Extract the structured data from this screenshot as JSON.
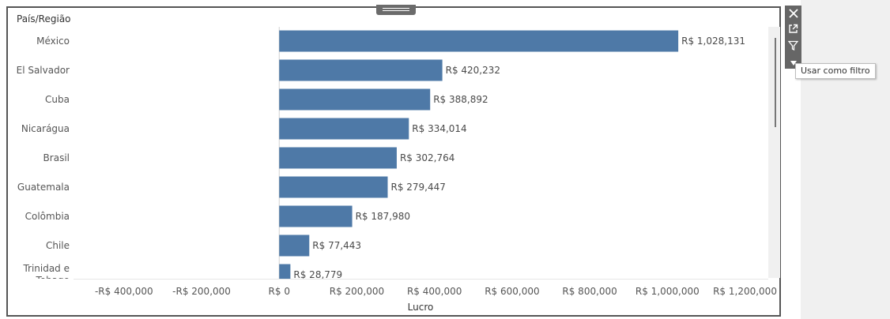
{
  "chart_data": {
    "type": "bar",
    "orientation": "horizontal",
    "row_header": "País/Região",
    "xlabel": "Lucro",
    "categories": [
      "México",
      "El Salvador",
      "Cuba",
      "Nicarágua",
      "Brasil",
      "Guatemala",
      "Colômbia",
      "Chile",
      "Trinidad e Tobago"
    ],
    "values": [
      1028131,
      420232,
      388892,
      334014,
      302764,
      279447,
      187980,
      77443,
      28779
    ],
    "data_labels": [
      "R$ 1,028,131",
      "R$ 420,232",
      "R$ 388,892",
      "R$ 334,014",
      "R$ 302,764",
      "R$ 279,447",
      "R$ 187,980",
      "R$ 77,443",
      "R$ 28,779"
    ],
    "xticks": [
      -400000,
      -200000,
      0,
      200000,
      400000,
      600000,
      800000,
      1000000,
      1200000
    ],
    "xtick_labels": [
      "-R$ 400,000",
      "-R$ 200,000",
      "R$ 0",
      "R$ 200,000",
      "R$ 400,000",
      "R$ 600,000",
      "R$ 800,000",
      "R$ 1,000,000",
      "R$ 1,200,000"
    ],
    "xlim": [
      -530000,
      1260000
    ],
    "bar_color": "#4e79a7",
    "grid": false
  },
  "toolbar": {
    "close_icon": "close-icon",
    "popout_icon": "popout-icon",
    "filter_icon": "filter-icon",
    "tooltip": "Usar como filtro"
  }
}
